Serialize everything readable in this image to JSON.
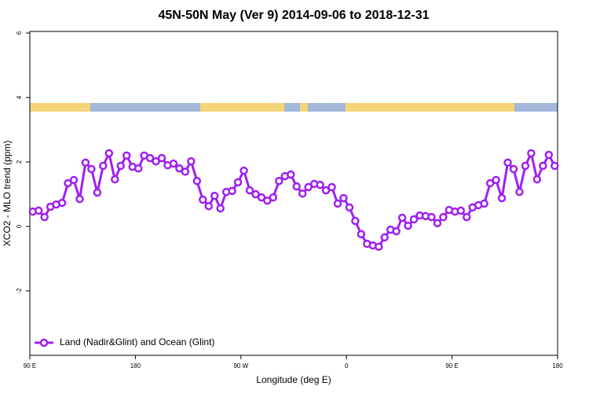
{
  "chart_data": {
    "type": "line",
    "title": "45N-50N May (Ver 9)   2014-09-06 to 2018-12-31",
    "x_label": "Longitude (deg E)",
    "y_label": "XCO2 - MLO trend (ppm)",
    "x": [
      92.5,
      97.5,
      102.5,
      107.5,
      112.5,
      117.5,
      122.5,
      127.5,
      132.5,
      137.5,
      142.5,
      147.5,
      152.5,
      157.5,
      162.5,
      167.5,
      172.5,
      177.5,
      182.5,
      187.5,
      192.5,
      197.5,
      202.5,
      207.5,
      212.5,
      217.5,
      222.5,
      227.5,
      232.5,
      237.5,
      242.5,
      247.5,
      252.5,
      257.5,
      262.5,
      267.5,
      272.5,
      277.5,
      282.5,
      287.5,
      292.5,
      297.5,
      302.5,
      307.5,
      312.5,
      317.5,
      322.5,
      327.5,
      332.5,
      337.5,
      342.5,
      347.5,
      352.5,
      357.5,
      362.5,
      367.5,
      372.5,
      377.5,
      382.5,
      387.5,
      392.5,
      397.5,
      402.5,
      407.5,
      412.5,
      417.5,
      422.5,
      427.5,
      432.5,
      437.5,
      442.5,
      447.5,
      452.5,
      457.5,
      462.5,
      467.5,
      472.5,
      477.5,
      482.5,
      487.5,
      492.5,
      497.5,
      502.5,
      507.5,
      512.5,
      517.5,
      522.5,
      527.5,
      532.5,
      537.5
    ],
    "series": [
      {
        "name": "Land (Nadir&Glint) and Ocean (Glint)",
        "color": "#a020f0",
        "values": [
          0.46,
          0.49,
          0.29,
          0.61,
          0.68,
          0.73,
          1.34,
          1.44,
          0.85,
          1.98,
          1.78,
          1.05,
          1.88,
          2.27,
          1.46,
          1.88,
          2.2,
          1.85,
          1.8,
          2.2,
          2.12,
          2.02,
          2.12,
          1.9,
          1.95,
          1.8,
          1.7,
          2.02,
          1.41,
          0.83,
          0.63,
          0.95,
          0.56,
          1.07,
          1.1,
          1.37,
          1.73,
          1.12,
          1.0,
          0.9,
          0.8,
          0.9,
          1.41,
          1.56,
          1.61,
          1.24,
          1.02,
          1.22,
          1.32,
          1.29,
          1.12,
          1.22,
          0.71,
          0.88,
          0.59,
          0.17,
          -0.24,
          -0.54,
          -0.59,
          -0.63,
          -0.34,
          -0.1,
          -0.15,
          0.27,
          0.02,
          0.22,
          0.34,
          0.32,
          0.29,
          0.1,
          0.29,
          0.51,
          0.46,
          0.49,
          0.29,
          0.59,
          0.66,
          0.71,
          1.34,
          1.44,
          0.88,
          1.98,
          1.78,
          1.07,
          1.88,
          2.27,
          1.46,
          1.88,
          2.22,
          1.88
        ]
      }
    ],
    "xlim": [
      90,
      540
    ],
    "xticks": [
      {
        "value": 90,
        "label": "90 E"
      },
      180,
      {
        "value": 270,
        "label": "90 W"
      },
      {
        "value": 360,
        "label": "0"
      },
      {
        "value": 450,
        "label": "90 E"
      },
      {
        "value": 540,
        "label": "180"
      }
    ],
    "ylim": [
      -4,
      6.05
    ],
    "yticks": [
      -2,
      0,
      2,
      4,
      6
    ],
    "legend": "bottom left"
  }
}
